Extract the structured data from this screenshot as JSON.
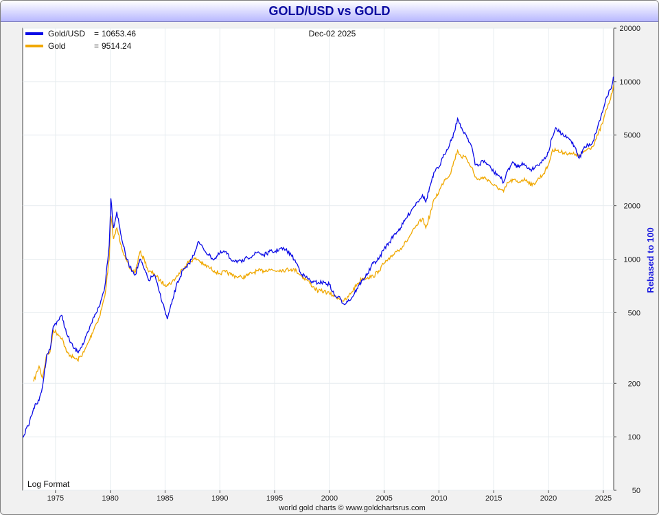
{
  "title": "GOLD/USD vs GOLD",
  "chart_data": {
    "type": "line",
    "title": "GOLD/USD vs GOLD",
    "date": "Dec-02  2025",
    "ylabel": "Rebased to 100",
    "yscale": "log",
    "ylim": [
      50,
      20000
    ],
    "xlim": [
      1972.0,
      2025.95
    ],
    "yticks": [
      "20000",
      "10000",
      "5000",
      "2000",
      "1000",
      "500",
      "200",
      "100",
      "50"
    ],
    "xticks": [
      "1975",
      "1980",
      "1985",
      "1990",
      "1995",
      "2000",
      "2005",
      "2010",
      "2015",
      "2020",
      "2025"
    ],
    "legend_position": "top-left",
    "scale_label": "Log Format",
    "footer": "world gold charts © www.goldchartsrus.com",
    "grid": true,
    "series": [
      {
        "name": "Gold/USD",
        "last_value": "10653.46",
        "color": "#0a0ae6",
        "x": [
          1972.0,
          1972.5,
          1973.0,
          1973.5,
          1973.8,
          1974.2,
          1974.5,
          1974.8,
          1975.2,
          1975.6,
          1976.0,
          1976.6,
          1977.0,
          1977.6,
          1978.0,
          1978.6,
          1979.0,
          1979.5,
          1979.9,
          1980.05,
          1980.3,
          1980.6,
          1981.0,
          1981.4,
          1981.8,
          1982.3,
          1982.7,
          1983.1,
          1983.5,
          1984.0,
          1984.5,
          1985.0,
          1985.2,
          1985.6,
          1986.0,
          1986.6,
          1987.0,
          1987.6,
          1988.0,
          1988.5,
          1989.0,
          1989.5,
          1990.0,
          1990.5,
          1991.0,
          1991.5,
          1992.0,
          1992.5,
          1993.0,
          1993.5,
          1994.0,
          1994.5,
          1995.0,
          1995.5,
          1996.0,
          1996.5,
          1997.0,
          1997.5,
          1998.0,
          1998.5,
          1999.0,
          1999.5,
          2000.0,
          2000.5,
          2001.0,
          2001.3,
          2001.6,
          2002.0,
          2002.5,
          2003.0,
          2003.5,
          2004.0,
          2004.5,
          2005.0,
          2005.5,
          2006.0,
          2006.5,
          2007.0,
          2007.5,
          2008.0,
          2008.5,
          2008.8,
          2009.2,
          2009.6,
          2010.0,
          2010.5,
          2011.0,
          2011.4,
          2011.7,
          2012.0,
          2012.5,
          2013.0,
          2013.3,
          2013.7,
          2014.0,
          2014.5,
          2015.0,
          2015.5,
          2015.9,
          2016.3,
          2016.8,
          2017.2,
          2017.6,
          2018.0,
          2018.5,
          2019.0,
          2019.5,
          2020.0,
          2020.3,
          2020.6,
          2021.0,
          2021.5,
          2022.0,
          2022.5,
          2022.8,
          2023.2,
          2023.6,
          2024.0,
          2024.5,
          2025.0,
          2025.3,
          2025.6,
          2025.8,
          2025.92
        ],
        "values": [
          100,
          115,
          145,
          160,
          190,
          290,
          310,
          420,
          450,
          480,
          380,
          320,
          300,
          340,
          390,
          490,
          540,
          700,
          1200,
          2200,
          1500,
          1850,
          1350,
          1050,
          900,
          820,
          1000,
          880,
          760,
          820,
          650,
          510,
          460,
          560,
          700,
          860,
          900,
          1050,
          1250,
          1150,
          1050,
          1000,
          1080,
          1100,
          1000,
          980,
          960,
          1020,
          1050,
          1100,
          1050,
          1100,
          1100,
          1150,
          1130,
          1060,
          950,
          820,
          780,
          740,
          740,
          740,
          720,
          620,
          600,
          560,
          580,
          600,
          680,
          760,
          830,
          950,
          1000,
          1150,
          1250,
          1400,
          1500,
          1700,
          1900,
          2100,
          2300,
          2100,
          2600,
          3100,
          3300,
          3900,
          4500,
          5200,
          6200,
          5500,
          5000,
          4300,
          3400,
          3400,
          3600,
          3400,
          3100,
          2950,
          2700,
          3200,
          3500,
          3300,
          3500,
          3300,
          3200,
          3400,
          3600,
          4000,
          4800,
          5400,
          5200,
          4900,
          4700,
          4200,
          3700,
          4200,
          4400,
          4500,
          5600,
          7000,
          8200,
          9000,
          9600,
          10653.46
        ]
      },
      {
        "name": "Gold",
        "last_value": "9514.24",
        "color": "#f0a800",
        "x": [
          1973.0,
          1973.5,
          1973.8,
          1974.2,
          1974.5,
          1974.8,
          1975.2,
          1975.6,
          1976.0,
          1976.6,
          1977.0,
          1977.6,
          1978.0,
          1978.6,
          1979.0,
          1979.5,
          1979.9,
          1980.05,
          1980.3,
          1980.6,
          1981.0,
          1981.4,
          1981.8,
          1982.3,
          1982.7,
          1983.1,
          1983.5,
          1984.0,
          1984.5,
          1985.0,
          1985.2,
          1985.6,
          1986.0,
          1986.6,
          1987.0,
          1987.6,
          1988.0,
          1988.5,
          1989.0,
          1989.5,
          1990.0,
          1990.5,
          1991.0,
          1991.5,
          1992.0,
          1992.5,
          1993.0,
          1993.5,
          1994.0,
          1994.5,
          1995.0,
          1995.5,
          1996.0,
          1996.5,
          1997.0,
          1997.5,
          1998.0,
          1998.5,
          1999.0,
          1999.5,
          2000.0,
          2000.5,
          2001.0,
          2001.3,
          2001.6,
          2002.0,
          2002.5,
          2003.0,
          2003.5,
          2004.0,
          2004.5,
          2005.0,
          2005.5,
          2006.0,
          2006.5,
          2007.0,
          2007.5,
          2008.0,
          2008.5,
          2008.8,
          2009.2,
          2009.6,
          2010.0,
          2010.5,
          2011.0,
          2011.4,
          2011.7,
          2012.0,
          2012.5,
          2013.0,
          2013.3,
          2013.7,
          2014.0,
          2014.5,
          2015.0,
          2015.5,
          2015.9,
          2016.3,
          2016.8,
          2017.2,
          2017.6,
          2018.0,
          2018.5,
          2019.0,
          2019.5,
          2020.0,
          2020.3,
          2020.6,
          2021.0,
          2021.5,
          2022.0,
          2022.5,
          2022.8,
          2023.2,
          2023.6,
          2024.0,
          2024.5,
          2025.0,
          2025.3,
          2025.6,
          2025.8,
          2025.92
        ],
        "values": [
          205,
          250,
          215,
          290,
          300,
          400,
          380,
          360,
          300,
          280,
          270,
          300,
          340,
          420,
          470,
          620,
          1000,
          1750,
          1300,
          1500,
          1200,
          1000,
          880,
          850,
          1100,
          1000,
          850,
          830,
          760,
          720,
          720,
          740,
          790,
          880,
          950,
          1000,
          1000,
          930,
          900,
          860,
          830,
          850,
          820,
          800,
          790,
          810,
          840,
          860,
          860,
          880,
          860,
          870,
          870,
          880,
          860,
          800,
          760,
          700,
          660,
          660,
          640,
          620,
          600,
          580,
          600,
          650,
          720,
          780,
          790,
          800,
          860,
          950,
          1000,
          1100,
          1150,
          1250,
          1400,
          1550,
          1700,
          1500,
          1800,
          2200,
          2400,
          2800,
          3000,
          3600,
          4100,
          3800,
          3700,
          3300,
          2900,
          2800,
          2900,
          2800,
          2600,
          2500,
          2400,
          2700,
          2800,
          2700,
          2800,
          2800,
          2600,
          2800,
          3000,
          3400,
          4000,
          4200,
          4000,
          4000,
          3900,
          3900,
          3800,
          4000,
          4200,
          4300,
          5000,
          6000,
          7000,
          7800,
          8600,
          9514.24
        ]
      }
    ]
  }
}
